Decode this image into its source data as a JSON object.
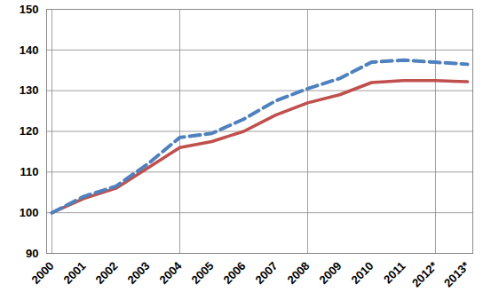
{
  "chart_data": {
    "type": "line",
    "categories": [
      "2000",
      "2001",
      "2002",
      "2003",
      "2004",
      "2005",
      "2006",
      "2007",
      "2008",
      "2009",
      "2010",
      "2011",
      "2012*",
      "2013*"
    ],
    "series": [
      {
        "color": "#c0504d",
        "line_style": "solid",
        "values": [
          100,
          103.5,
          106,
          111,
          116,
          117.5,
          120,
          124,
          127,
          129,
          132,
          132.5,
          132.5,
          132.2
        ]
      },
      {
        "color": "#4f81bd",
        "line_style": "dashed",
        "values": [
          100,
          104,
          106.5,
          112,
          118.5,
          119.5,
          123,
          127.5,
          130.5,
          133,
          137,
          137.5,
          137,
          136.5
        ]
      }
    ],
    "ylim": [
      90,
      150
    ],
    "yticks": [
      90,
      100,
      110,
      120,
      130,
      140,
      150
    ],
    "grid": true
  }
}
